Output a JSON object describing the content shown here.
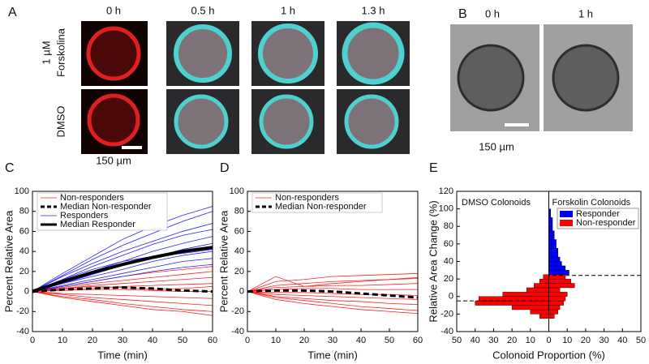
{
  "figure": {
    "panel_a": {
      "label": "A",
      "time_labels": [
        "0 h",
        "0.5 h",
        "1 h",
        "1.3 h"
      ],
      "rows": [
        {
          "label_lines": [
            "1 µM",
            "Forskolina"
          ]
        },
        {
          "label_lines": [
            "DMSO"
          ]
        }
      ],
      "scale_bar": "150  µm"
    },
    "panel_b": {
      "label": "B",
      "time_labels": [
        "0 h",
        "1 h"
      ],
      "scale_bar": "150 µm"
    }
  },
  "chart_data": [
    {
      "type": "line",
      "panel_label": "C",
      "x_label": "Time (min)",
      "y_label": "Percent Relative Area",
      "x": [
        0,
        10,
        20,
        30,
        40,
        50,
        60
      ],
      "xlim": [
        0,
        60
      ],
      "xticks": [
        0,
        10,
        20,
        30,
        40,
        50,
        60
      ],
      "ylim": [
        -40,
        100
      ],
      "yticks": [
        -40,
        -20,
        0,
        20,
        40,
        60,
        80,
        100
      ],
      "legend": "upper left",
      "series": [
        {
          "name": "Non-responders",
          "color": "#ff2020",
          "line_width": 0.8,
          "dashed": false,
          "traces": [
            [
              0,
              5,
              10,
              15,
              19,
              22,
              25
            ],
            [
              0,
              4,
              8,
              11,
              14,
              17,
              20
            ],
            [
              0,
              3,
              6,
              8,
              10,
              12,
              14
            ],
            [
              0,
              2,
              3,
              5,
              6,
              7,
              8
            ],
            [
              0,
              1,
              2,
              2,
              1,
              0,
              0
            ],
            [
              0,
              -2,
              -3,
              -4,
              -5,
              -6,
              -7
            ],
            [
              0,
              -3,
              -6,
              -8,
              -10,
              -12,
              -14
            ],
            [
              0,
              -5,
              -8,
              -12,
              -15,
              -18,
              -20
            ],
            [
              0,
              -6,
              -10,
              -14,
              -18,
              -20,
              -24
            ],
            [
              0,
              3,
              5,
              4,
              2,
              3,
              5
            ]
          ]
        },
        {
          "name": "Median Non-responder",
          "color": "#000000",
          "line_width": 3,
          "dashed": true,
          "traces": [
            [
              0,
              2,
              3,
              4,
              3,
              1,
              0
            ]
          ]
        },
        {
          "name": "Responders",
          "color": "#2020ff",
          "line_width": 0.8,
          "dashed": false,
          "traces": [
            [
              0,
              18,
              35,
              52,
              65,
              76,
              85
            ],
            [
              0,
              16,
              32,
              46,
              58,
              70,
              80
            ],
            [
              0,
              15,
              28,
              40,
              50,
              60,
              68
            ],
            [
              0,
              12,
              25,
              36,
              47,
              56,
              62
            ],
            [
              0,
              10,
              20,
              30,
              40,
              48,
              55
            ],
            [
              0,
              8,
              17,
              26,
              34,
              42,
              48
            ],
            [
              0,
              8,
              15,
              22,
              30,
              36,
              40
            ],
            [
              0,
              6,
              12,
              18,
              24,
              30,
              33
            ],
            [
              0,
              5,
              10,
              15,
              20,
              24,
              27
            ],
            [
              0,
              12,
              22,
              30,
              35,
              38,
              42
            ]
          ]
        },
        {
          "name": "Median Responder",
          "color": "#000000",
          "line_width": 4,
          "dashed": false,
          "traces": [
            [
              0,
              10,
              19,
              27,
              34,
              40,
              44
            ]
          ]
        }
      ]
    },
    {
      "type": "line",
      "panel_label": "D",
      "x_label": "Time (min)",
      "y_label": "Percent Relative Area",
      "x": [
        0,
        10,
        20,
        30,
        40,
        50,
        60
      ],
      "xlim": [
        0,
        60
      ],
      "xticks": [
        0,
        10,
        20,
        30,
        40,
        50,
        60
      ],
      "ylim": [
        -40,
        100
      ],
      "yticks": [
        -40,
        -20,
        0,
        20,
        40,
        60,
        80,
        100
      ],
      "legend": "upper left",
      "series": [
        {
          "name": "Non-responders",
          "color": "#ff2020",
          "line_width": 0.8,
          "dashed": false,
          "traces": [
            [
              0,
              10,
              12,
              15,
              16,
              17,
              18
            ],
            [
              0,
              6,
              8,
              10,
              11,
              12,
              13
            ],
            [
              0,
              4,
              5,
              6,
              6,
              7,
              8
            ],
            [
              0,
              2,
              3,
              3,
              2,
              2,
              2
            ],
            [
              0,
              -1,
              -1,
              -2,
              -3,
              -3,
              -4
            ],
            [
              0,
              -3,
              -4,
              -5,
              -6,
              -7,
              -8
            ],
            [
              0,
              -5,
              -7,
              -9,
              -10,
              -12,
              -13
            ],
            [
              0,
              -6,
              -9,
              -12,
              -15,
              -17,
              -19
            ],
            [
              0,
              -8,
              -12,
              -15,
              -18,
              -20,
              -22
            ],
            [
              0,
              15,
              5,
              8,
              10,
              12,
              14
            ]
          ]
        },
        {
          "name": "Median Non-responder",
          "color": "#000000",
          "line_width": 3,
          "dashed": true,
          "traces": [
            [
              0,
              1,
              1,
              0,
              -2,
              -4,
              -6
            ]
          ]
        }
      ]
    },
    {
      "type": "histogram",
      "panel_label": "E",
      "x_label": "Colonoid Proportion (%)",
      "y_label": "Relative Area Change (%)",
      "xlim": [
        -50,
        50
      ],
      "xticks": [
        {
          "value": -50,
          "label": "50"
        },
        {
          "value": -40,
          "label": "40"
        },
        {
          "value": -30,
          "label": "30"
        },
        {
          "value": -20,
          "label": "20"
        },
        {
          "value": -10,
          "label": "10"
        },
        0,
        10,
        20,
        30,
        40,
        50
      ],
      "ylim": [
        -40,
        120
      ],
      "yticks": [
        -40,
        -20,
        0,
        20,
        40,
        60,
        80,
        100,
        120
      ],
      "legend": "upper right",
      "bins": [
        -25,
        -20,
        -15,
        -10,
        -5,
        0,
        5,
        10,
        15,
        20,
        25,
        30,
        35,
        40,
        45,
        50,
        55,
        60,
        65,
        70,
        75,
        80,
        85,
        90,
        95,
        100
      ],
      "groups": [
        {
          "label": "DMSO Colonoids",
          "side": "left",
          "median": -5,
          "series": [
            {
              "color": "#ff0000",
              "values": [
                -5,
                -10,
                -20,
                -40,
                -38,
                -25,
                -12,
                -8,
                -5,
                -3,
                0,
                0,
                0,
                0,
                0,
                0,
                0,
                0,
                0,
                0,
                0,
                0,
                0,
                0,
                0
              ]
            }
          ]
        },
        {
          "label": "Forskolin Colonoids",
          "side": "right",
          "median": 24,
          "series": [
            {
              "name": "Responder",
              "color": "#0000ff",
              "values": [
                0,
                0,
                0,
                0,
                0,
                0,
                0,
                0,
                5,
                8,
                11,
                9,
                7,
                6,
                5,
                5,
                4,
                4,
                3,
                3,
                2,
                2,
                2,
                1,
                1
              ]
            },
            {
              "name": "Non-responder",
              "color": "#ff0000",
              "values": [
                3,
                5,
                6,
                8,
                9,
                10,
                6,
                14,
                12,
                9,
                0,
                0,
                0,
                0,
                0,
                0,
                0,
                0,
                0,
                0,
                0,
                0,
                0,
                0,
                0
              ]
            }
          ]
        }
      ]
    }
  ]
}
